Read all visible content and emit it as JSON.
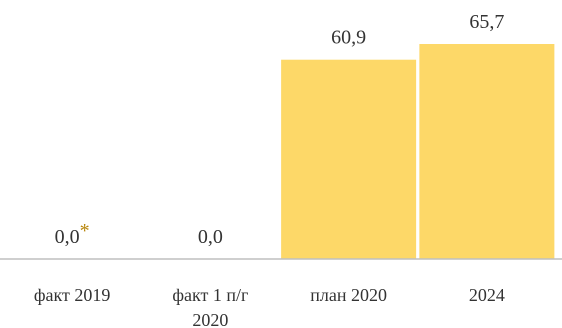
{
  "chart_data": {
    "type": "bar",
    "categories": [
      "факт 2019",
      "факт 1 п/г 2020",
      "план 2020",
      "2024"
    ],
    "category_lines": [
      [
        "факт 2019"
      ],
      [
        "факт 1 п/г",
        "2020"
      ],
      [
        "план 2020"
      ],
      [
        "2024"
      ]
    ],
    "values": [
      0.0,
      0.0,
      60.9,
      65.7
    ],
    "value_labels": [
      "0,0",
      "0,0",
      "60,9",
      "65,7"
    ],
    "annotations": [
      {
        "category": "факт 2019",
        "marker": "*"
      }
    ],
    "title": "",
    "xlabel": "",
    "ylabel": "",
    "ylim": [
      0,
      65.7
    ],
    "grid": false,
    "colors": {
      "bar": "#fdd868",
      "axis": "#bfbfbf",
      "text": "#333333",
      "star": "#b8860b"
    }
  }
}
